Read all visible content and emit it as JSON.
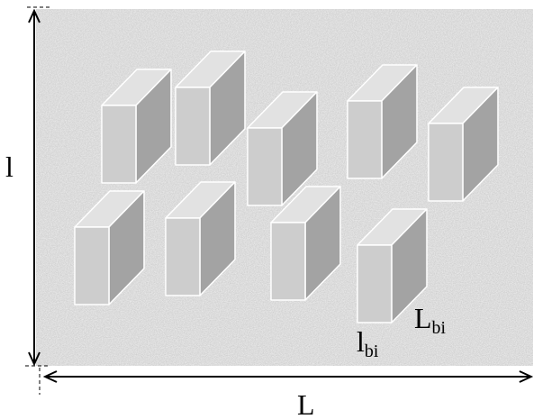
{
  "labels": {
    "height": "l",
    "width": "L",
    "box_width": {
      "base": "l",
      "sub": "bi"
    },
    "box_length": {
      "base": "L",
      "sub": "bi"
    }
  }
}
